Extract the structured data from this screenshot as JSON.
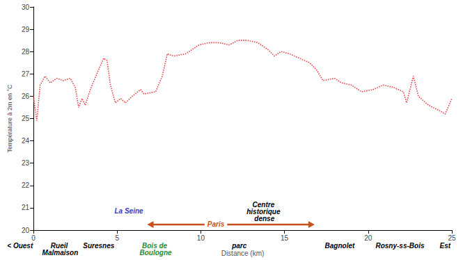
{
  "chart_data": {
    "type": "line",
    "y_label": "Température à 2m en °C",
    "x_label": "Distance (km)",
    "x": [
      0,
      0.2,
      0.4,
      0.7,
      1.0,
      1.4,
      1.8,
      2.2,
      2.5,
      2.7,
      2.9,
      3.1,
      3.4,
      3.9,
      4.2,
      4.4,
      4.6,
      4.9,
      5.2,
      5.5,
      5.9,
      6.4,
      6.6,
      7.3,
      7.7,
      8.0,
      8.4,
      9.1,
      9.9,
      10.5,
      11.1,
      11.7,
      12.2,
      12.8,
      13.4,
      14.0,
      14.4,
      14.8,
      15.3,
      15.9,
      16.5,
      16.9,
      17.3,
      18.0,
      18.4,
      19.0,
      19.6,
      20.3,
      20.9,
      21.5,
      22.1,
      22.3,
      22.7,
      23.0,
      23.6,
      24.4,
      24.6,
      25.0
    ],
    "values": [
      26.0,
      24.9,
      26.5,
      26.9,
      26.6,
      26.8,
      26.7,
      26.8,
      26.4,
      25.5,
      25.9,
      25.6,
      26.3,
      27.2,
      27.7,
      27.6,
      26.5,
      25.7,
      25.9,
      25.7,
      26.0,
      26.3,
      26.1,
      26.2,
      26.9,
      27.9,
      27.8,
      27.9,
      28.3,
      28.4,
      28.4,
      28.3,
      28.5,
      28.5,
      28.4,
      28.1,
      27.8,
      28.0,
      27.9,
      27.7,
      27.5,
      27.2,
      26.7,
      26.8,
      26.6,
      26.5,
      26.2,
      26.3,
      26.5,
      26.4,
      26.2,
      25.7,
      26.9,
      26.0,
      25.6,
      25.3,
      25.2,
      25.9
    ],
    "color": "#e8474c",
    "marker": "none",
    "line_style": "dotted",
    "xlim": [
      0,
      25
    ],
    "xticks": [
      0,
      5,
      10,
      15,
      20,
      25
    ],
    "ylim": [
      20,
      30
    ],
    "yticks": [
      20,
      21,
      22,
      23,
      24,
      25,
      26,
      27,
      28,
      29,
      30
    ],
    "grid": false,
    "annotations": [
      {
        "text": "< Ouest",
        "x": -0.8,
        "y": 19.45,
        "color": "#000000"
      },
      {
        "text": "Rueil Malmaison",
        "x": 1.6,
        "y": 19.45,
        "color": "#000000"
      },
      {
        "text": "Suresnes",
        "x": 3.9,
        "y": 19.45,
        "color": "#000000"
      },
      {
        "text": "La Seine",
        "x": 5.7,
        "y": 21.0,
        "color": "#2f3fbf"
      },
      {
        "text": "Bois de Boulogne",
        "x": 7.3,
        "y": 19.45,
        "color": "#2e8b2e"
      },
      {
        "text": "Paris",
        "x": 10.9,
        "y": 20.25,
        "color": "#c8501e",
        "span": [
          6.8,
          16.8
        ]
      },
      {
        "text": "parc",
        "x": 12.3,
        "y": 19.45,
        "color": "#000000"
      },
      {
        "text": "Centre historique dense",
        "x": 13.8,
        "y": 21.3,
        "color": "#000000"
      },
      {
        "text": "Bagnolet",
        "x": 18.3,
        "y": 19.45,
        "color": "#000000"
      },
      {
        "text": "Rosny-ss-Bois",
        "x": 21.9,
        "y": 19.45,
        "color": "#000000"
      },
      {
        "text": "Est",
        "x": 24.6,
        "y": 19.45,
        "color": "#000000"
      }
    ]
  }
}
